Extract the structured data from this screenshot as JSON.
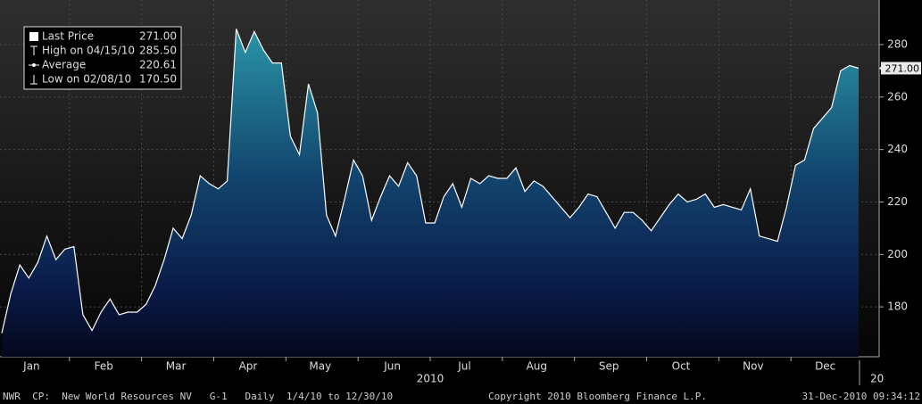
{
  "chart_data": {
    "type": "area",
    "series": [
      {
        "name": "Last Price",
        "color": "#ffffff",
        "values": [
          170,
          185,
          196,
          191,
          197,
          207,
          198,
          202,
          203,
          177,
          171,
          178,
          183,
          177,
          178,
          178,
          181,
          188,
          198,
          210,
          206,
          215,
          230,
          227,
          225,
          228,
          286,
          277,
          285,
          278,
          273,
          273,
          245,
          238,
          265,
          254,
          215,
          207,
          221,
          236,
          230,
          213,
          222,
          230,
          226,
          235,
          230,
          212,
          212,
          222,
          227,
          218,
          229,
          227,
          230,
          229,
          229,
          233,
          224,
          228,
          226,
          222,
          218,
          214,
          218,
          223,
          222,
          216,
          210,
          216,
          216,
          213,
          209,
          214,
          219,
          223,
          220,
          221,
          223,
          218,
          219,
          218,
          217,
          225,
          207,
          206,
          205,
          218,
          234,
          236,
          248,
          252,
          256,
          270,
          272,
          271
        ]
      }
    ],
    "categories": [
      null,
      null,
      null,
      null,
      "Jan",
      null,
      null,
      null,
      null,
      null,
      null,
      null,
      "Feb",
      null,
      null,
      null,
      null,
      null,
      null,
      null,
      "Mar",
      null,
      null,
      null,
      null,
      null,
      null,
      null,
      "Apr",
      null,
      null,
      null,
      null,
      null,
      null,
      null,
      "May",
      null,
      null,
      null,
      null,
      null,
      null,
      null,
      "Jun",
      null,
      null,
      null,
      null,
      null,
      null,
      null,
      "Jul",
      null,
      null,
      null,
      null,
      null,
      null,
      null,
      "Aug",
      null,
      null,
      null,
      null,
      null,
      null,
      null,
      "Sep",
      null,
      null,
      null,
      null,
      null,
      null,
      null,
      "Oct",
      null,
      null,
      null,
      null,
      null,
      null,
      null,
      "Nov",
      null,
      null,
      null,
      null,
      null,
      null,
      null,
      "Dec",
      null,
      null,
      null
    ],
    "x_year_label": "2010",
    "x_next_year_label": "20",
    "ylim": [
      161,
      297
    ],
    "yticks": [
      180,
      200,
      220,
      240,
      260,
      280
    ],
    "grid": true,
    "last_price_label": {
      "value": 271,
      "label": "271.00"
    },
    "legend": [
      {
        "name": "Last Price",
        "value": {
          "value": 271,
          "label": "271.00"
        }
      },
      {
        "name": "High on 04/15/10",
        "value": {
          "value": 285.5,
          "label": "285.50"
        }
      },
      {
        "name": "Average",
        "value": 220.61
      },
      {
        "name": "Low on 02/08/10",
        "value": {
          "value": 170.5,
          "label": "170.50"
        }
      }
    ]
  },
  "footer": {
    "left": "NWR  CP:  New World Resources NV   G-1   Daily  1/4/10 to 12/30/10",
    "center": "Copyright 2010 Bloomberg Finance L.P.",
    "right": "31-Dec-2010 09:34:12"
  }
}
